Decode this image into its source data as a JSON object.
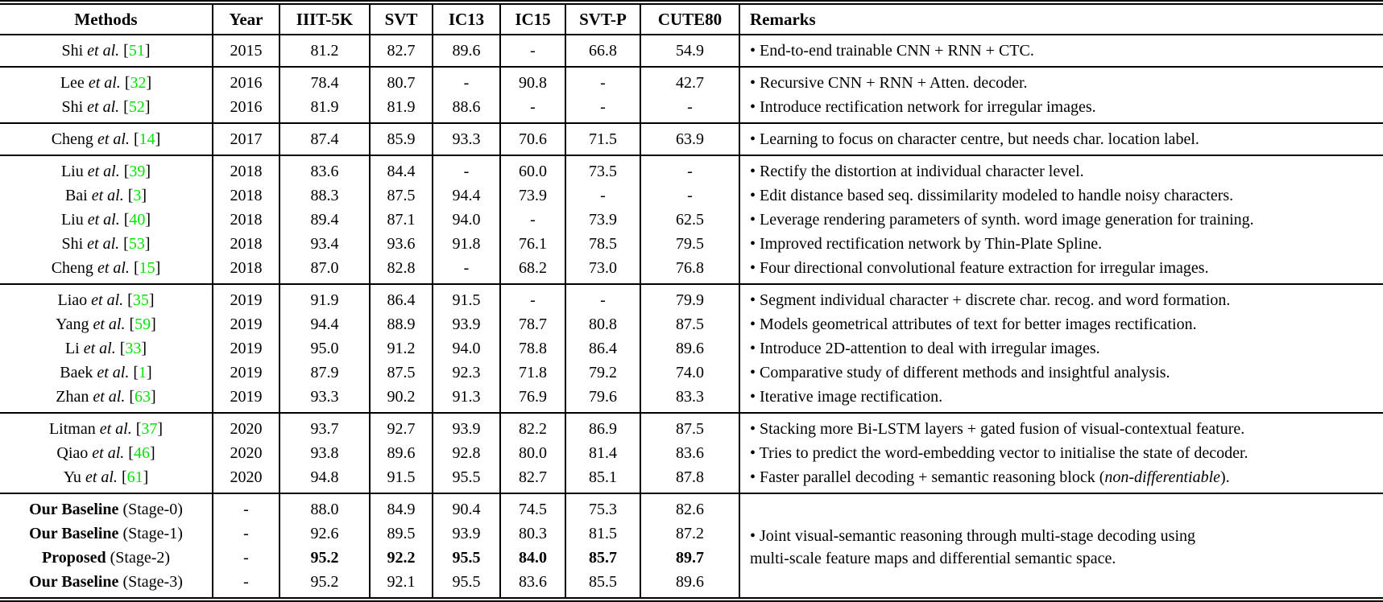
{
  "page": {
    "background": "#ffffff",
    "text_color": "#000000",
    "citation_color": "#00e400",
    "rule_color": "#000000"
  },
  "table": {
    "headers": [
      "Methods",
      "Year",
      "IIIT-5K",
      "SVT",
      "IC13",
      "IC15",
      "SVT-P",
      "CUTE80",
      "Remarks"
    ],
    "etal": "et al.",
    "groups": [
      {
        "rows": [
          {
            "method": {
              "author": "Shi",
              "cite": "51"
            },
            "year": "2015",
            "scores": [
              "81.2",
              "82.7",
              "89.6",
              "-",
              "66.8",
              "54.9"
            ],
            "remark": [
              {
                "text": "• End-to-end trainable CNN + RNN + CTC."
              }
            ]
          }
        ]
      },
      {
        "rows": [
          {
            "method": {
              "author": "Lee",
              "cite": "32"
            },
            "year": "2016",
            "scores": [
              "78.4",
              "80.7",
              "-",
              "90.8",
              "-",
              "42.7"
            ],
            "remark": [
              {
                "text": "• Recursive CNN + RNN + Atten. decoder."
              }
            ]
          },
          {
            "method": {
              "author": "Shi",
              "cite": "52"
            },
            "year": "2016",
            "scores": [
              "81.9",
              "81.9",
              "88.6",
              "-",
              "-",
              "-"
            ],
            "remark": [
              {
                "text": "• Introduce rectification network for irregular images."
              }
            ]
          }
        ]
      },
      {
        "rows": [
          {
            "method": {
              "author": "Cheng",
              "cite": "14"
            },
            "year": "2017",
            "scores": [
              "87.4",
              "85.9",
              "93.3",
              "70.6",
              "71.5",
              "63.9"
            ],
            "remark": [
              {
                "text": "• Learning to focus on character centre, but needs char. location label."
              }
            ]
          }
        ]
      },
      {
        "rows": [
          {
            "method": {
              "author": "Liu",
              "cite": "39"
            },
            "year": "2018",
            "scores": [
              "83.6",
              "84.4",
              "-",
              "60.0",
              "73.5",
              "-"
            ],
            "remark": [
              {
                "text": "• Rectify the distortion at individual character level."
              }
            ]
          },
          {
            "method": {
              "author": "Bai",
              "cite": "3"
            },
            "year": "2018",
            "scores": [
              "88.3",
              "87.5",
              "94.4",
              "73.9",
              "-",
              "-"
            ],
            "remark": [
              {
                "text": "• Edit distance based seq. dissimilarity modeled to handle noisy characters."
              }
            ]
          },
          {
            "method": {
              "author": "Liu",
              "cite": "40"
            },
            "year": "2018",
            "scores": [
              "89.4",
              "87.1",
              "94.0",
              "-",
              "73.9",
              "62.5"
            ],
            "remark": [
              {
                "text": "• Leverage rendering parameters of synth. word image generation for training."
              }
            ]
          },
          {
            "method": {
              "author": "Shi",
              "cite": "53"
            },
            "year": "2018",
            "scores": [
              "93.4",
              "93.6",
              "91.8",
              "76.1",
              "78.5",
              "79.5"
            ],
            "remark": [
              {
                "text": "• Improved rectification network by Thin-Plate Spline."
              }
            ]
          },
          {
            "method": {
              "author": "Cheng",
              "cite": "15"
            },
            "year": "2018",
            "scores": [
              "87.0",
              "82.8",
              "-",
              "68.2",
              "73.0",
              "76.8"
            ],
            "remark": [
              {
                "text": "• Four directional convolutional feature extraction for irregular images."
              }
            ]
          }
        ]
      },
      {
        "rows": [
          {
            "method": {
              "author": "Liao",
              "cite": "35"
            },
            "year": "2019",
            "scores": [
              "91.9",
              "86.4",
              "91.5",
              "-",
              "-",
              "79.9"
            ],
            "remark": [
              {
                "text": "•  Segment individual character + discrete char. recog. and word formation."
              }
            ]
          },
          {
            "method": {
              "author": "Yang",
              "cite": "59"
            },
            "year": "2019",
            "scores": [
              "94.4",
              "88.9",
              "93.9",
              "78.7",
              "80.8",
              "87.5"
            ],
            "remark": [
              {
                "text": "• Models geometrical attributes of text for better images rectification."
              }
            ]
          },
          {
            "method": {
              "author": "Li",
              "cite": "33"
            },
            "year": "2019",
            "scores": [
              "95.0",
              "91.2",
              "94.0",
              "78.8",
              "86.4",
              "89.6"
            ],
            "remark": [
              {
                "text": "• Introduce 2D-attention to deal with irregular images."
              }
            ]
          },
          {
            "method": {
              "author": "Baek",
              "cite": "1"
            },
            "year": "2019",
            "scores": [
              "87.9",
              "87.5",
              "92.3",
              "71.8",
              "79.2",
              "74.0"
            ],
            "remark": [
              {
                "text": "• Comparative study of different methods and insightful analysis."
              }
            ]
          },
          {
            "method": {
              "author": "Zhan",
              "cite": "63"
            },
            "year": "2019",
            "scores": [
              "93.3",
              "90.2",
              "91.3",
              "76.9",
              "79.6",
              "83.3"
            ],
            "remark": [
              {
                "text": "• Iterative image rectification."
              }
            ]
          }
        ]
      },
      {
        "rows": [
          {
            "method": {
              "author": "Litman",
              "cite": "37"
            },
            "year": "2020",
            "scores": [
              "93.7",
              "92.7",
              "93.9",
              "82.2",
              "86.9",
              "87.5"
            ],
            "remark": [
              {
                "text": "• Stacking more Bi-LSTM layers + gated fusion of visual-contextual feature."
              }
            ]
          },
          {
            "method": {
              "author": "Qiao",
              "cite": "46"
            },
            "year": "2020",
            "scores": [
              "93.8",
              "89.6",
              "92.8",
              "80.0",
              "81.4",
              "83.6"
            ],
            "remark": [
              {
                "text": "• Tries to predict the word-embedding vector to initialise the state of decoder."
              }
            ]
          },
          {
            "method": {
              "author": "Yu",
              "cite": "61"
            },
            "year": "2020",
            "scores": [
              "94.8",
              "91.5",
              "95.5",
              "82.7",
              "85.1",
              "87.8"
            ],
            "remark": [
              {
                "text": "• Faster parallel decoding + semantic reasoning block ("
              },
              {
                "text": "non-differentiable",
                "italic": true
              },
              {
                "text": ")."
              }
            ]
          }
        ]
      },
      {
        "remark_lines": [
          "• Joint visual-semantic reasoning through multi-stage decoding using",
          "multi-scale feature maps and differential semantic space."
        ],
        "rows": [
          {
            "method": {
              "bold": "Our Baseline",
              "plain": " (Stage-0)"
            },
            "year": "-",
            "scores": [
              "88.0",
              "84.9",
              "90.4",
              "74.5",
              "75.3",
              "82.6"
            ]
          },
          {
            "method": {
              "bold": "Our Baseline",
              "plain": " (Stage-1)"
            },
            "year": "-",
            "scores": [
              "92.6",
              "89.5",
              "93.9",
              "80.3",
              "81.5",
              "87.2"
            ]
          },
          {
            "method": {
              "bold": "Proposed",
              "plain": " (Stage-2)"
            },
            "year": "-",
            "bold_scores": true,
            "scores": [
              "95.2",
              "92.2",
              "95.5",
              "84.0",
              "85.7",
              "89.7"
            ]
          },
          {
            "method": {
              "bold": "Our Baseline",
              "plain": " (Stage-3)"
            },
            "year": "-",
            "scores": [
              "95.2",
              "92.1",
              "95.5",
              "83.6",
              "85.5",
              "89.6"
            ]
          }
        ]
      }
    ]
  }
}
